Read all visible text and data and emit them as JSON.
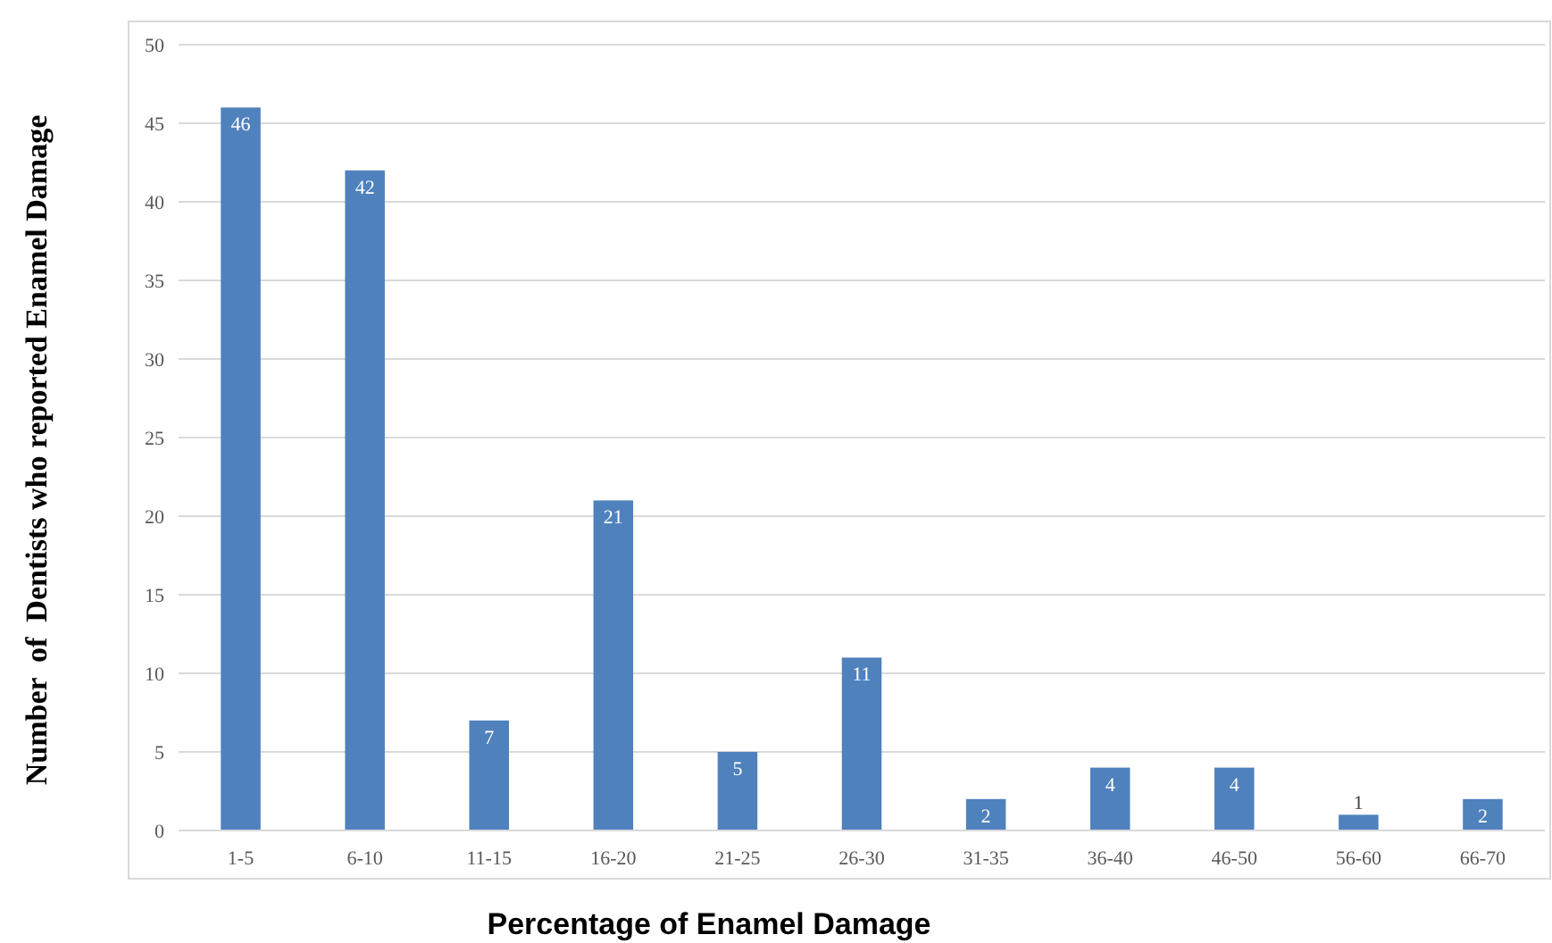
{
  "chart_data": {
    "type": "bar",
    "xlabel": "Percentage of Enamel Damage",
    "ylabel": "Number  of  Dentists who reported Enamel Damage",
    "categories": [
      "1-5",
      "6-10",
      "11-15",
      "16-20",
      "21-25",
      "26-30",
      "31-35",
      "36-40",
      "46-50",
      "56-60",
      "66-70"
    ],
    "values": [
      46,
      42,
      7,
      21,
      5,
      11,
      2,
      4,
      4,
      1,
      2
    ],
    "color": "#4f81bd",
    "ylim": [
      0,
      50
    ],
    "yticks": [
      0,
      5,
      10,
      15,
      20,
      25,
      30,
      35,
      40,
      45,
      50
    ],
    "grid": "y",
    "data_labels": true
  }
}
